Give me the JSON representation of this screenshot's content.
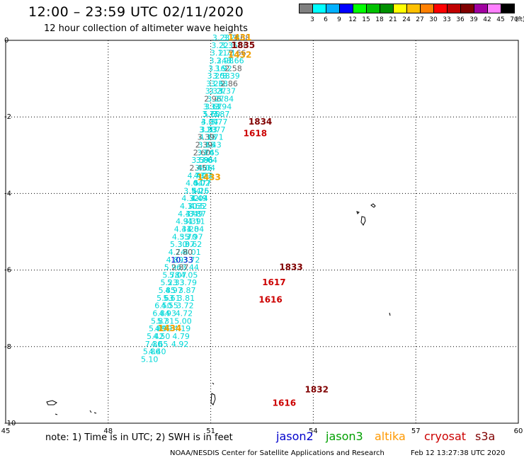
{
  "header": {
    "title": "12:00 – 23:59 UTC 02/11/2020",
    "subtitle": "12 hour collection of altimeter wave heights"
  },
  "legend": {
    "unit": "(ft)",
    "colors": [
      "#808080",
      "#00ffff",
      "#00b0ff",
      "#0000ff",
      "#00ff00",
      "#00c000",
      "#009000",
      "#ffff00",
      "#ffc000",
      "#ff8000",
      "#ff0000",
      "#c00000",
      "#800000",
      "#a000a0",
      "#ff80ff",
      "#000000"
    ],
    "labels": [
      "3",
      "6",
      "9",
      "12",
      "15",
      "18",
      "21",
      "24",
      "27",
      "30",
      "33",
      "36",
      "39",
      "42",
      "45",
      "70"
    ]
  },
  "footer": {
    "note": "note:  1) Time is in UTC;  2) SWH is in feet",
    "satellites": [
      {
        "name": "jason2",
        "color": "#0000cc"
      },
      {
        "name": "jason3",
        "color": "#00a000"
      },
      {
        "name": "altika",
        "color": "#ff9900"
      },
      {
        "name": "cryosat",
        "color": "#cc0000"
      },
      {
        "name": "s3a",
        "color": "#800000"
      }
    ],
    "credit": "NOAA/NESDIS Center for Satellite Applications and Research",
    "timestamp": "Feb 12 13:27:38 UTC 2020"
  },
  "chart_data": {
    "type": "scatter",
    "xlim": [
      45,
      60
    ],
    "ylim": [
      -10,
      0
    ],
    "xticks": [
      "45",
      "48",
      "51",
      "54",
      "57",
      "60"
    ],
    "yticks": [
      "0",
      "-2",
      "-4",
      "-6",
      "-8",
      "-10"
    ],
    "grid": true,
    "colors": {
      "cyan": "#00d8d8",
      "gray": "#606060",
      "orange": "#f0a000",
      "red": "#cc0000",
      "maroon": "#800000",
      "blue": "#0000cc"
    },
    "left_track": {
      "color": "cyan",
      "points": [
        {
          "x": 51.3,
          "y": -0.0,
          "v": "3.23"
        },
        {
          "x": 51.27,
          "y": -0.2,
          "v": "3.22"
        },
        {
          "x": 51.24,
          "y": -0.4,
          "v": "3.11"
        },
        {
          "x": 51.21,
          "y": -0.6,
          "v": "3.24"
        },
        {
          "x": 51.18,
          "y": -0.8,
          "v": "3.16"
        },
        {
          "x": 51.15,
          "y": -1.0,
          "v": "3.20"
        },
        {
          "x": 51.12,
          "y": -1.2,
          "v": "3.26"
        },
        {
          "x": 51.09,
          "y": -1.4,
          "v": "3.33"
        },
        {
          "x": 51.06,
          "y": -1.6,
          "v": "2.96",
          "c": "gray"
        },
        {
          "x": 51.03,
          "y": -1.8,
          "v": "3.33"
        },
        {
          "x": 51.0,
          "y": -2.0,
          "v": "3.75"
        },
        {
          "x": 50.97,
          "y": -2.2,
          "v": "4.04"
        },
        {
          "x": 50.94,
          "y": -2.4,
          "v": "3.93"
        },
        {
          "x": 50.91,
          "y": -2.6,
          "v": "4.18"
        },
        {
          "x": 50.88,
          "y": -2.8,
          "v": "3.65"
        },
        {
          "x": 50.85,
          "y": -3.0,
          "v": "3.76"
        },
        {
          "x": 50.82,
          "y": -3.2,
          "v": "3.86"
        },
        {
          "x": 50.79,
          "y": -3.4,
          "v": "3.66"
        },
        {
          "x": 50.76,
          "y": -3.6,
          "v": "4.09"
        },
        {
          "x": 50.73,
          "y": -3.8,
          "v": "4.02"
        },
        {
          "x": 50.7,
          "y": -4.0,
          "v": "4.25"
        },
        {
          "x": 50.67,
          "y": -4.2,
          "v": "4.04"
        },
        {
          "x": 50.64,
          "y": -4.4,
          "v": "4.32"
        },
        {
          "x": 50.61,
          "y": -4.6,
          "v": "3.87"
        },
        {
          "x": 50.58,
          "y": -4.8,
          "v": "4.11"
        },
        {
          "x": 50.55,
          "y": -5.0,
          "v": "4.04"
        },
        {
          "x": 50.52,
          "y": -5.2,
          "v": "3.97"
        },
        {
          "x": 50.49,
          "y": -5.4,
          "v": "3.62"
        },
        {
          "x": 50.46,
          "y": -5.6,
          "v": "4.01"
        },
        {
          "x": 50.43,
          "y": -5.8,
          "v": "3.72"
        },
        {
          "x": 50.4,
          "y": -6.0,
          "v": "3.44"
        },
        {
          "x": 50.37,
          "y": -6.2,
          "v": "4.05"
        },
        {
          "x": 50.34,
          "y": -6.4,
          "v": "3.79"
        },
        {
          "x": 50.31,
          "y": -6.6,
          "v": "3.87"
        },
        {
          "x": 50.28,
          "y": -6.8,
          "v": "3.81"
        },
        {
          "x": 50.25,
          "y": -7.0,
          "v": "3.72"
        },
        {
          "x": 50.22,
          "y": -7.2,
          "v": "4.72"
        },
        {
          "x": 50.19,
          "y": -7.4,
          "v": "5.00"
        },
        {
          "x": 50.16,
          "y": -7.6,
          "v": "4.19"
        },
        {
          "x": 50.13,
          "y": -7.8,
          "v": "4.79"
        },
        {
          "x": 50.1,
          "y": -8.0,
          "v": "4.92"
        }
      ]
    },
    "middle_track": {
      "color": "cyan",
      "points": [
        {
          "x": 51.6,
          "y": -0.0,
          "v": "3.28"
        },
        {
          "x": 51.54,
          "y": -0.2,
          "v": "3.35"
        },
        {
          "x": 51.48,
          "y": -0.4,
          "v": "2.71"
        },
        {
          "x": 51.42,
          "y": -0.6,
          "v": "3.98"
        },
        {
          "x": 51.37,
          "y": -0.8,
          "v": "3.92"
        },
        {
          "x": 51.31,
          "y": -1.0,
          "v": "3.58"
        },
        {
          "x": 51.25,
          "y": -1.2,
          "v": "3.38"
        },
        {
          "x": 51.2,
          "y": -1.4,
          "v": "3.27"
        },
        {
          "x": 51.14,
          "y": -1.6,
          "v": "3.27"
        },
        {
          "x": 51.08,
          "y": -1.8,
          "v": "3.67"
        },
        {
          "x": 51.03,
          "y": -2.0,
          "v": "5.60"
        },
        {
          "x": 50.97,
          "y": -2.2,
          "v": "3.37"
        },
        {
          "x": 50.91,
          "y": -2.4,
          "v": "3.23"
        },
        {
          "x": 50.86,
          "y": -2.6,
          "v": "3.39",
          "c": "gray"
        },
        {
          "x": 50.8,
          "y": -2.8,
          "v": "2.39",
          "c": "gray"
        },
        {
          "x": 50.74,
          "y": -3.0,
          "v": "2.60",
          "c": "gray"
        },
        {
          "x": 50.69,
          "y": -3.2,
          "v": "3.59"
        },
        {
          "x": 50.63,
          "y": -3.4,
          "v": "2.45",
          "c": "gray"
        },
        {
          "x": 50.57,
          "y": -3.6,
          "v": "4.73"
        },
        {
          "x": 50.52,
          "y": -3.8,
          "v": "4.04"
        },
        {
          "x": 50.46,
          "y": -4.0,
          "v": "3.54"
        },
        {
          "x": 50.4,
          "y": -4.2,
          "v": "4.32"
        },
        {
          "x": 50.35,
          "y": -4.4,
          "v": "4.10"
        },
        {
          "x": 50.29,
          "y": -4.6,
          "v": "4.47"
        },
        {
          "x": 50.23,
          "y": -4.8,
          "v": "4.91"
        },
        {
          "x": 50.18,
          "y": -5.0,
          "v": "4.41"
        },
        {
          "x": 50.12,
          "y": -5.2,
          "v": "4.55"
        },
        {
          "x": 50.06,
          "y": -5.4,
          "v": "5.30"
        },
        {
          "x": 50.01,
          "y": -5.6,
          "v": "4.74"
        },
        {
          "x": 49.95,
          "y": -5.8,
          "v": "4.89"
        },
        {
          "x": 49.89,
          "y": -6.0,
          "v": "5.96"
        },
        {
          "x": 49.84,
          "y": -6.2,
          "v": "5.78"
        },
        {
          "x": 49.78,
          "y": -6.4,
          "v": "5.23"
        },
        {
          "x": 49.72,
          "y": -6.6,
          "v": "5.85"
        },
        {
          "x": 49.67,
          "y": -6.8,
          "v": "5.63"
        },
        {
          "x": 49.61,
          "y": -7.0,
          "v": "6.50"
        },
        {
          "x": 49.55,
          "y": -7.2,
          "v": "6.84"
        },
        {
          "x": 49.5,
          "y": -7.4,
          "v": "5.87"
        },
        {
          "x": 49.44,
          "y": -7.6,
          "v": "5.89"
        },
        {
          "x": 49.38,
          "y": -7.8,
          "v": "5.42"
        },
        {
          "x": 49.33,
          "y": -8.0,
          "v": "7.30"
        },
        {
          "x": 49.27,
          "y": -8.2,
          "v": "5.86"
        },
        {
          "x": 49.21,
          "y": -8.4,
          "v": "5.10"
        }
      ]
    },
    "right_track": {
      "color": "cyan",
      "points": [
        {
          "x": 51.9,
          "y": -0.0,
          "v": "3.68",
          "c": "gray"
        },
        {
          "x": 51.84,
          "y": -0.2,
          "v": "3.66",
          "c": "gray"
        },
        {
          "x": 51.78,
          "y": -0.4,
          "v": "2.66",
          "c": "gray"
        },
        {
          "x": 51.72,
          "y": -0.6,
          "v": "3.66"
        },
        {
          "x": 51.66,
          "y": -0.8,
          "v": "2.58",
          "c": "gray"
        },
        {
          "x": 51.6,
          "y": -1.0,
          "v": "3.39"
        },
        {
          "x": 51.54,
          "y": -1.2,
          "v": "2.86",
          "c": "gray"
        },
        {
          "x": 51.48,
          "y": -1.4,
          "v": "3.37"
        },
        {
          "x": 51.42,
          "y": -1.6,
          "v": "3.84"
        },
        {
          "x": 51.36,
          "y": -1.8,
          "v": "3.94"
        },
        {
          "x": 51.3,
          "y": -2.0,
          "v": "3.87"
        },
        {
          "x": 51.24,
          "y": -2.2,
          "v": "3.77"
        },
        {
          "x": 51.18,
          "y": -2.4,
          "v": "3.77"
        },
        {
          "x": 51.12,
          "y": -2.6,
          "v": "3.71"
        },
        {
          "x": 51.06,
          "y": -2.8,
          "v": "3.43"
        },
        {
          "x": 51.0,
          "y": -3.0,
          "v": "3.45"
        },
        {
          "x": 50.94,
          "y": -3.2,
          "v": "3.04"
        },
        {
          "x": 50.88,
          "y": -3.4,
          "v": "4.04"
        },
        {
          "x": 50.82,
          "y": -3.6,
          "v": "4.22"
        },
        {
          "x": 50.76,
          "y": -3.8,
          "v": "5.77"
        },
        {
          "x": 50.7,
          "y": -4.0,
          "v": "5.16"
        },
        {
          "x": 50.64,
          "y": -4.2,
          "v": "3.49"
        },
        {
          "x": 50.58,
          "y": -4.4,
          "v": "3.65"
        },
        {
          "x": 50.52,
          "y": -4.6,
          "v": "3.49"
        },
        {
          "x": 50.46,
          "y": -4.8,
          "v": "3.39"
        },
        {
          "x": 50.4,
          "y": -5.0,
          "v": "3.28"
        },
        {
          "x": 50.34,
          "y": -5.2,
          "v": "3.70"
        },
        {
          "x": 50.28,
          "y": -5.4,
          "v": "3.07"
        },
        {
          "x": 50.22,
          "y": -5.6,
          "v": "2.80",
          "c": "gray"
        },
        {
          "x": 50.16,
          "y": -5.8,
          "v": "10.33",
          "c": "blue"
        },
        {
          "x": 50.1,
          "y": -6.0,
          "v": "2.87",
          "c": "gray"
        },
        {
          "x": 50.04,
          "y": -6.2,
          "v": "5.07"
        },
        {
          "x": 49.98,
          "y": -6.4,
          "v": "5.33"
        },
        {
          "x": 49.92,
          "y": -6.6,
          "v": "4.97"
        },
        {
          "x": 49.86,
          "y": -6.8,
          "v": "5.61"
        },
        {
          "x": 49.8,
          "y": -7.0,
          "v": "4.55"
        },
        {
          "x": 49.74,
          "y": -7.2,
          "v": "4.93"
        },
        {
          "x": 49.68,
          "y": -7.4,
          "v": "5.31"
        },
        {
          "x": 49.62,
          "y": -7.6,
          "v": "4.99"
        },
        {
          "x": 49.56,
          "y": -7.8,
          "v": "4.50"
        },
        {
          "x": 49.5,
          "y": -8.0,
          "v": "4.65"
        },
        {
          "x": 49.44,
          "y": -8.2,
          "v": "4.40"
        }
      ]
    },
    "time_labels": [
      {
        "x": 51.85,
        "y": -0.0,
        "v": "1431",
        "c": "orange"
      },
      {
        "x": 51.95,
        "y": -0.2,
        "v": "1835",
        "c": "maroon"
      },
      {
        "x": 51.85,
        "y": -0.45,
        "v": "1432",
        "c": "orange"
      },
      {
        "x": 52.45,
        "y": -2.2,
        "v": "1834",
        "c": "maroon"
      },
      {
        "x": 52.3,
        "y": -2.5,
        "v": "1618",
        "c": "red"
      },
      {
        "x": 50.95,
        "y": -3.65,
        "v": "1433",
        "c": "orange"
      },
      {
        "x": 53.35,
        "y": -6.0,
        "v": "1833",
        "c": "maroon"
      },
      {
        "x": 52.85,
        "y": -6.4,
        "v": "1617",
        "c": "red"
      },
      {
        "x": 52.75,
        "y": -6.85,
        "v": "1616",
        "c": "red"
      },
      {
        "x": 49.8,
        "y": -7.6,
        "v": "1434",
        "c": "orange"
      },
      {
        "x": 54.1,
        "y": -9.2,
        "v": "1832",
        "c": "maroon"
      },
      {
        "x": 53.15,
        "y": -9.55,
        "v": "1616",
        "c": "red"
      }
    ]
  }
}
